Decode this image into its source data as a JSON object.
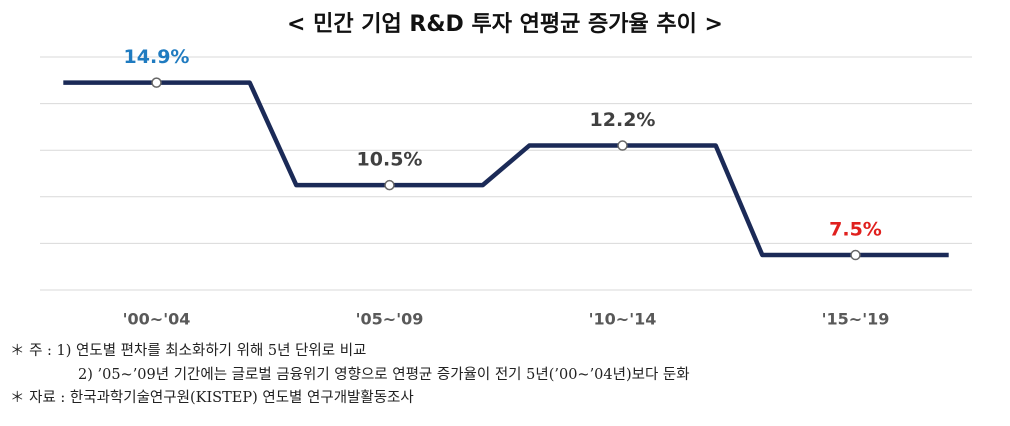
{
  "chart_data": {
    "type": "line",
    "title": "< 민간 기업 R&D 투자 연평균 증가율 추이 >",
    "categories": [
      "'00~'04",
      "'05~'09",
      "'10~'14",
      "'15~'19"
    ],
    "values": [
      14.9,
      10.5,
      12.2,
      7.5
    ],
    "value_labels": [
      "14.9%",
      "10.5%",
      "12.2%",
      "7.5%"
    ],
    "value_label_colors": [
      "#1f7bc0",
      "#404040",
      "#404040",
      "#e0201e"
    ],
    "color": "#1b2a57",
    "ylim": [
      6,
      16
    ],
    "yticks": [
      6,
      8,
      10,
      12,
      14,
      16
    ],
    "grid": true
  },
  "notes": [
    "＊ 주 : 1) 연도별 편차를 최소화하기 위해 5년 단위로 비교",
    "2) ’05~’09년 기간에는 글로벌 금융위기 영향으로 연평균 증가율이 전기 5년(’00~’04년)보다 둔화",
    "＊ 자료 : 한국과학기술연구원(KISTEP) 연도별 연구개발활동조사"
  ]
}
